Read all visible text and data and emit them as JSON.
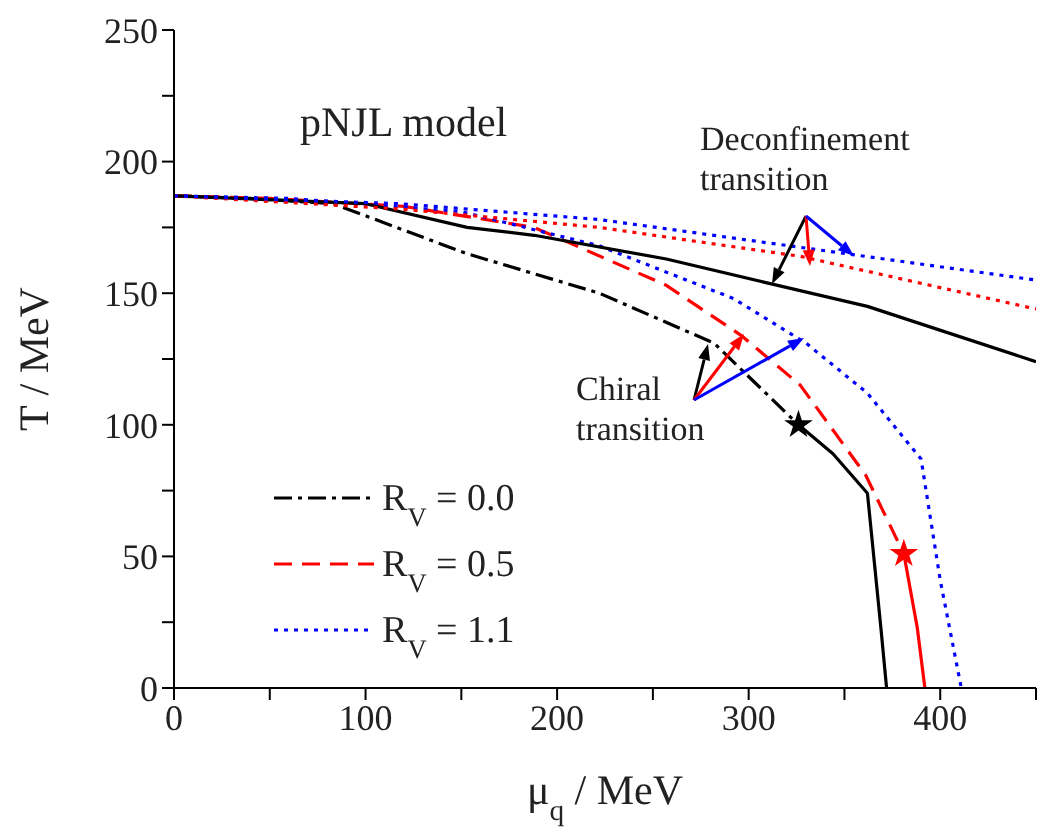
{
  "chart_data": {
    "type": "line",
    "xlabel": "μ$_{q}$ / MeV",
    "ylabel": "T / MeV",
    "xlim": [
      0,
      450
    ],
    "xticks": [
      0,
      {
        "value": 50,
        "label": null
      },
      100,
      {
        "value": 150,
        "label": null
      },
      200,
      {
        "value": 250,
        "label": null
      },
      300,
      {
        "value": 350,
        "label": null
      },
      400,
      {
        "value": 450,
        "label": null
      }
    ],
    "ylim": [
      0,
      250
    ],
    "yticks": [
      0,
      {
        "value": 25,
        "label": null
      },
      50,
      {
        "value": 75,
        "label": null
      },
      100,
      {
        "value": 125,
        "label": null
      },
      150,
      {
        "value": 175,
        "label": null
      },
      200,
      {
        "value": 225,
        "label": null
      },
      250
    ],
    "legend": "bottom left",
    "annotations": [
      "pNJL model",
      "Deconfinement\ntransition",
      "Chiral\ntransition"
    ],
    "series": [
      {
        "name": "R$_{V}$ = 0.0",
        "color": "#000000",
        "line_style": "dashdot",
        "x": [
          0,
          40,
          83,
          153,
          222,
          282,
          326
        ],
        "values": [
          187,
          186,
          184,
          165,
          150,
          131,
          100
        ]
      },
      {
        "name": "R$_{V}$ = 0.5",
        "color": "#ff0000",
        "line_style": "dashed",
        "x": [
          0,
          50,
          120,
          188,
          257,
          296,
          327,
          361,
          381
        ],
        "values": [
          187,
          186,
          183,
          175,
          153,
          134,
          115,
          81,
          51
        ]
      },
      {
        "name": "R$_{V}$ = 1.1",
        "color": "#0000ff",
        "line_style": "dotted",
        "x": [
          0,
          60,
          150,
          222,
          292,
          330,
          362,
          390,
          400,
          411
        ],
        "values": [
          187,
          186,
          181,
          168,
          148,
          131,
          112,
          87,
          41,
          0
        ]
      },
      {
        "color": "#000000",
        "line_style": "solid",
        "x": [
          326,
          344,
          362,
          369,
          372
        ],
        "values": [
          100,
          89,
          74,
          23,
          0
        ]
      },
      {
        "color": "#ff0000",
        "line_style": "solid",
        "x": [
          381,
          388,
          392
        ],
        "values": [
          51,
          23,
          0
        ]
      },
      {
        "color": "#000000",
        "line_style": "solid",
        "x": [
          0,
          100,
          153,
          188,
          257,
          309,
          362,
          450
        ],
        "values": [
          187,
          184,
          175,
          172,
          163,
          154,
          145,
          124
        ]
      },
      {
        "color": "#ff0000",
        "line_style": "dotted",
        "x": [
          0,
          118,
          222,
          327,
          450
        ],
        "values": [
          187,
          182,
          175,
          164,
          144
        ]
      },
      {
        "color": "#0000ff",
        "line_style": "dotted",
        "x": [
          0,
          118,
          222,
          351,
          450
        ],
        "values": [
          187,
          184,
          178,
          165,
          155
        ]
      },
      {
        "type": "scatter",
        "marker": "star",
        "color": "#000000",
        "x": [
          326
        ],
        "values": [
          100
        ]
      },
      {
        "type": "scatter",
        "marker": "star",
        "color": "#ff0000",
        "x": [
          381
        ],
        "values": [
          51
        ]
      }
    ]
  }
}
